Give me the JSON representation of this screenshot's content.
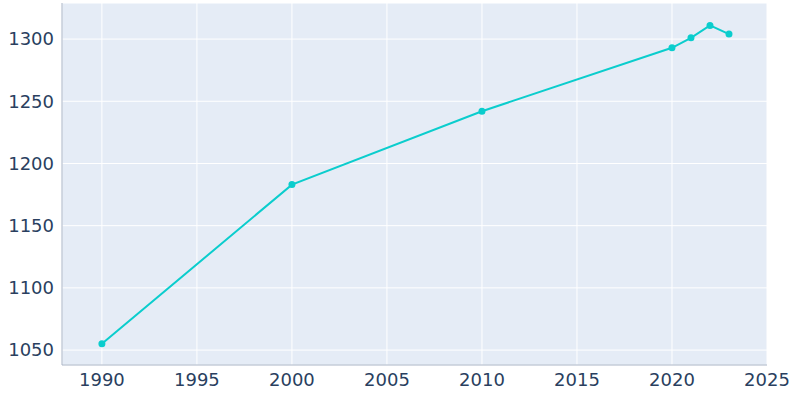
{
  "chart_data": {
    "type": "line",
    "x": [
      1990,
      2000,
      2010,
      2020,
      2021,
      2022,
      2023
    ],
    "values": [
      1055,
      1183,
      1242,
      1293,
      1301,
      1311,
      1304
    ],
    "color": "#0bcdcd",
    "marker": "circle",
    "xlim": [
      1987.9,
      2025
    ],
    "xticks": [
      1990,
      1995,
      2000,
      2005,
      2010,
      2015,
      2020,
      2025
    ],
    "ylim": [
      1038,
      1329
    ],
    "yticks": [
      1050,
      1100,
      1150,
      1200,
      1250,
      1300
    ],
    "grid": true
  }
}
